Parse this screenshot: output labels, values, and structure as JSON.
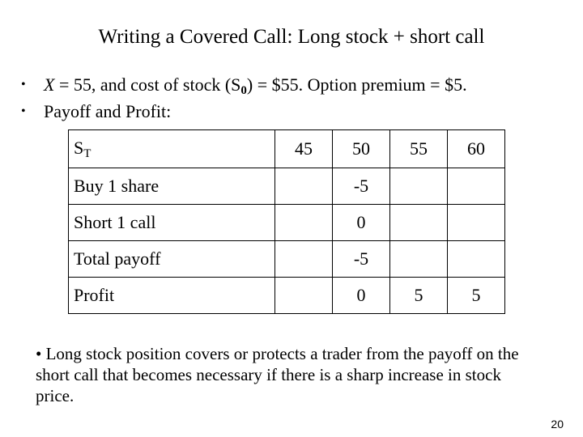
{
  "title": "Writing a Covered Call: Long stock + short call",
  "bullets": {
    "b1": {
      "var": "X",
      "part1": " = 55, and cost of stock (S",
      "sub": "0",
      "part2": ") = $55. Option premium = $5."
    },
    "b2": "Payoff and Profit:"
  },
  "table": {
    "header": {
      "label": "S",
      "label_sub": "T",
      "cols": [
        "45",
        "50",
        "55",
        "60"
      ]
    },
    "rows": [
      {
        "label": "Buy 1 share",
        "cells": [
          "",
          "-5",
          "",
          ""
        ]
      },
      {
        "label": "Short 1 call",
        "cells": [
          "",
          "0",
          "",
          ""
        ]
      },
      {
        "label": "Total payoff",
        "cells": [
          "",
          "-5",
          "",
          ""
        ]
      },
      {
        "label": "Profit",
        "cells": [
          "",
          "0",
          "5",
          "5"
        ]
      }
    ]
  },
  "note": "• Long stock position covers or protects a trader from the payoff on the short call that becomes necessary if there is a sharp increase in stock price.",
  "page_number": "20"
}
